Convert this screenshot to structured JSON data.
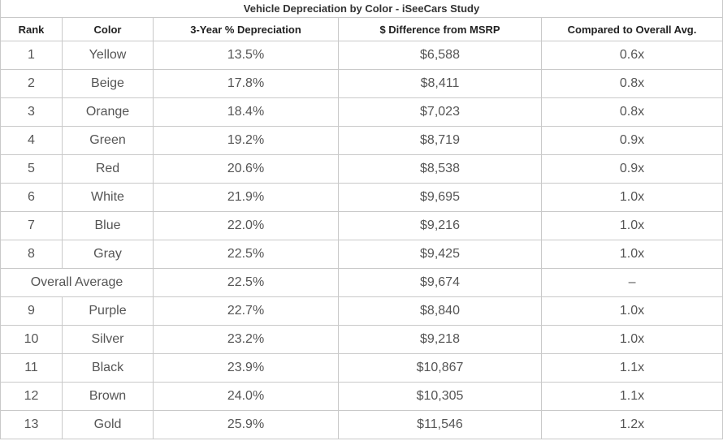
{
  "table": {
    "title": "Vehicle Depreciation by Color - iSeeCars Study",
    "headers": [
      "Rank",
      "Color",
      "3-Year % Depreciation",
      "$ Difference from MSRP",
      "Compared to Overall Avg."
    ],
    "rows": [
      [
        "1",
        "Yellow",
        "13.5%",
        "$6,588",
        "0.6x"
      ],
      [
        "2",
        "Beige",
        "17.8%",
        "$8,411",
        "0.8x"
      ],
      [
        "3",
        "Orange",
        "18.4%",
        "$7,023",
        "0.8x"
      ],
      [
        "4",
        "Green",
        "19.2%",
        "$8,719",
        "0.9x"
      ],
      [
        "5",
        "Red",
        "20.6%",
        "$8,538",
        "0.9x"
      ],
      [
        "6",
        "White",
        "21.9%",
        "$9,695",
        "1.0x"
      ],
      [
        "7",
        "Blue",
        "22.0%",
        "$9,216",
        "1.0x"
      ],
      [
        "8",
        "Gray",
        "22.5%",
        "$9,425",
        "1.0x"
      ],
      [
        "Overall Average",
        "22.5%",
        "$9,674",
        "–"
      ],
      [
        "9",
        "Purple",
        "22.7%",
        "$8,840",
        "1.0x"
      ],
      [
        "10",
        "Silver",
        "23.2%",
        "$9,218",
        "1.0x"
      ],
      [
        "11",
        "Black",
        "23.9%",
        "$10,867",
        "1.1x"
      ],
      [
        "12",
        "Brown",
        "24.0%",
        "$10,305",
        "1.1x"
      ],
      [
        "13",
        "Gold",
        "25.9%",
        "$11,546",
        "1.2x"
      ]
    ]
  },
  "colors": {
    "border": "#c9c9c9",
    "text": "#555555",
    "header_text": "#222222"
  }
}
